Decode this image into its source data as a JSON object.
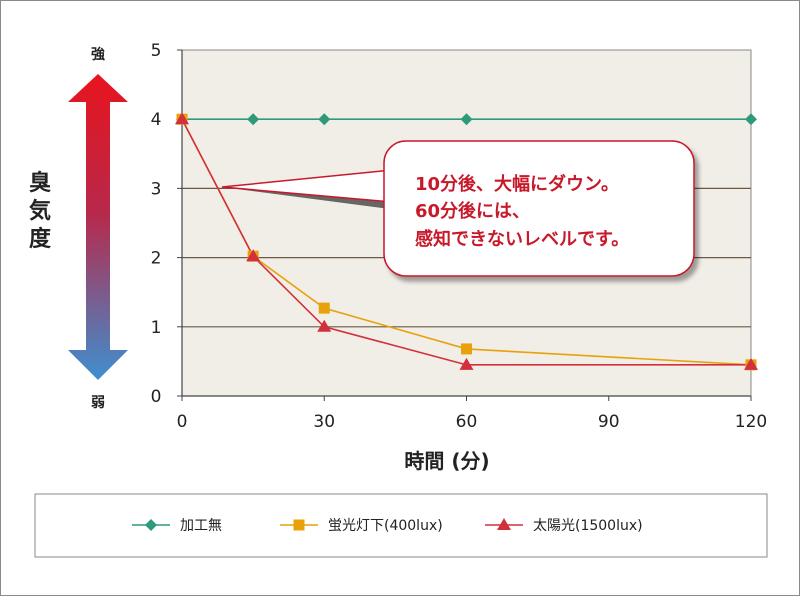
{
  "chart_data": {
    "type": "line",
    "xlabel": "時間 (分)",
    "ylabel": "臭気度",
    "xlim": [
      0,
      120
    ],
    "ylim": [
      0,
      5
    ],
    "x_ticks": [
      0,
      30,
      60,
      90,
      120
    ],
    "y_ticks": [
      0,
      1,
      2,
      3,
      4,
      5
    ],
    "y_top_label": "強",
    "y_bottom_label": "弱",
    "grid": "horizontal",
    "legend_position": "bottom",
    "series": [
      {
        "name": "加工無",
        "color": "#2e9a7a",
        "marker": "diamond",
        "x": [
          0,
          15,
          30,
          60,
          120
        ],
        "y": [
          4,
          4,
          4,
          4,
          4
        ]
      },
      {
        "name": "蛍光灯下(400lux)",
        "color": "#e8a10a",
        "marker": "square",
        "x": [
          0,
          15,
          30,
          60,
          120
        ],
        "y": [
          4,
          2.02,
          1.27,
          0.68,
          0.45
        ]
      },
      {
        "name": "太陽光(1500lux)",
        "color": "#d2303b",
        "marker": "triangle",
        "x": [
          0,
          15,
          30,
          60,
          120
        ],
        "y": [
          4,
          2.02,
          1.0,
          0.45,
          0.45
        ]
      }
    ],
    "annotation": {
      "lines": [
        "10分後、大幅にダウン。",
        "60分後には、",
        "感知できないレベルです。"
      ],
      "anchor_x": 7,
      "anchor_y": 3
    }
  },
  "colors": {
    "plot_bg": "#f1eee8",
    "arrow_top": "#e8141e",
    "arrow_bottom": "#3f8fcf",
    "callout_border": "#c8192b"
  }
}
